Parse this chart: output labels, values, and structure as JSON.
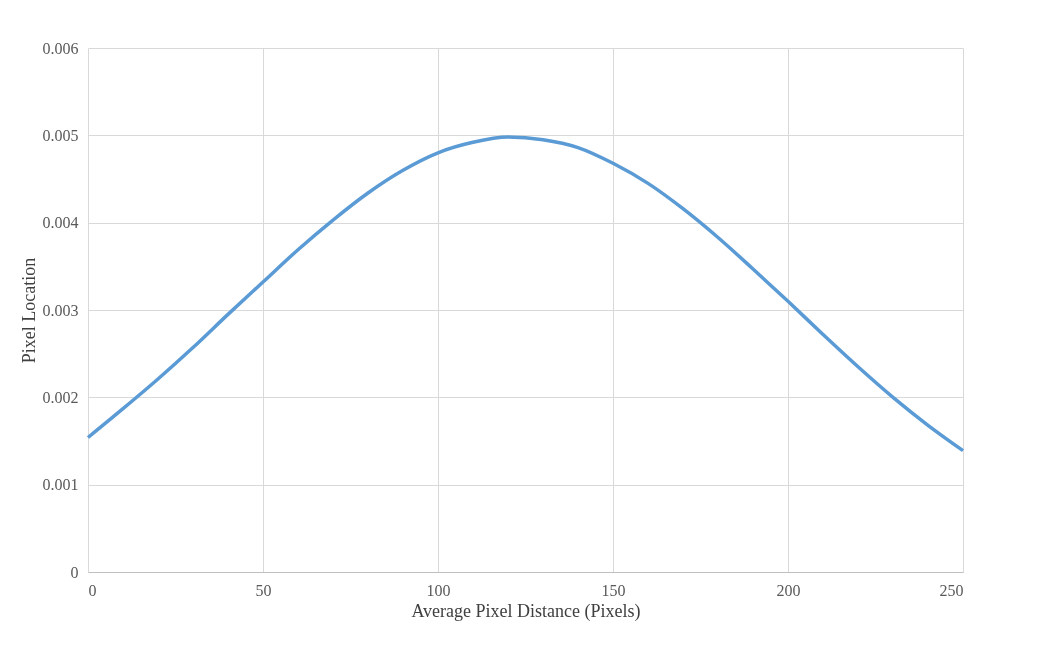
{
  "chart_data": {
    "type": "line",
    "xlabel": "Average Pixel Distance (Pixels)",
    "ylabel": "Pixel  Location",
    "x": [
      0,
      10,
      20,
      30,
      40,
      50,
      60,
      70,
      80,
      90,
      100,
      110,
      120,
      130,
      140,
      150,
      160,
      170,
      180,
      190,
      200,
      210,
      220,
      230,
      240,
      250
    ],
    "series": [
      {
        "color": "#5b9bd5",
        "values": [
          0.00154,
          0.00187,
          0.00221,
          0.00257,
          0.00295,
          0.00332,
          0.00369,
          0.00403,
          0.00434,
          0.0046,
          0.0048,
          0.00492,
          0.00498,
          0.00495,
          0.00486,
          0.00468,
          0.00445,
          0.00416,
          0.00383,
          0.00347,
          0.0031,
          0.00272,
          0.00235,
          0.002,
          0.00168,
          0.00139
        ]
      }
    ],
    "xlim": [
      0,
      250
    ],
    "xticks": [
      0,
      50,
      100,
      150,
      200,
      250
    ],
    "ylim": [
      0,
      0.006
    ],
    "yticks": [
      0,
      0.001,
      0.002,
      0.003,
      0.004,
      0.005,
      0.006
    ],
    "grid": true,
    "marker": "none",
    "line_style": "solid"
  }
}
